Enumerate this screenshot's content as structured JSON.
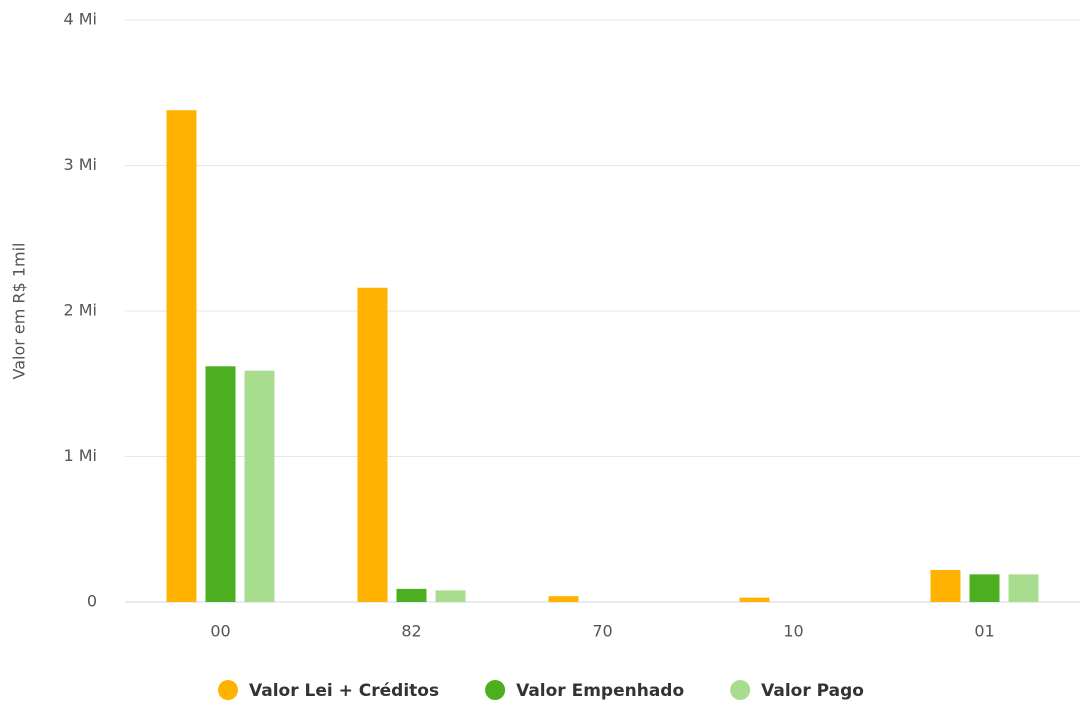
{
  "chart_data": {
    "type": "bar",
    "y_label": "Valor em R$ 1mil",
    "categories": [
      "00",
      "82",
      "70",
      "10",
      "01"
    ],
    "series": [
      {
        "name": "Valor Lei + Créditos",
        "color": "#ffb300",
        "values": [
          3.38,
          2.16,
          0.04,
          0.03,
          0.22
        ]
      },
      {
        "name": "Valor Empenhado",
        "color": "#4caf1f",
        "values": [
          1.62,
          0.09,
          0,
          0,
          0.19
        ]
      },
      {
        "name": "Valor Pago",
        "color": "#a8dd8f",
        "values": [
          1.59,
          0.08,
          0,
          0,
          0.19
        ]
      }
    ],
    "ylim": [
      0,
      4
    ],
    "yticks": [
      0,
      {
        "value": 1,
        "label": "1 Mi"
      },
      {
        "value": 2,
        "label": "2 Mi"
      },
      {
        "value": 3,
        "label": "3 Mi"
      },
      {
        "value": 4,
        "label": "4 Mi"
      }
    ],
    "grid": true,
    "legend": "bottom"
  }
}
